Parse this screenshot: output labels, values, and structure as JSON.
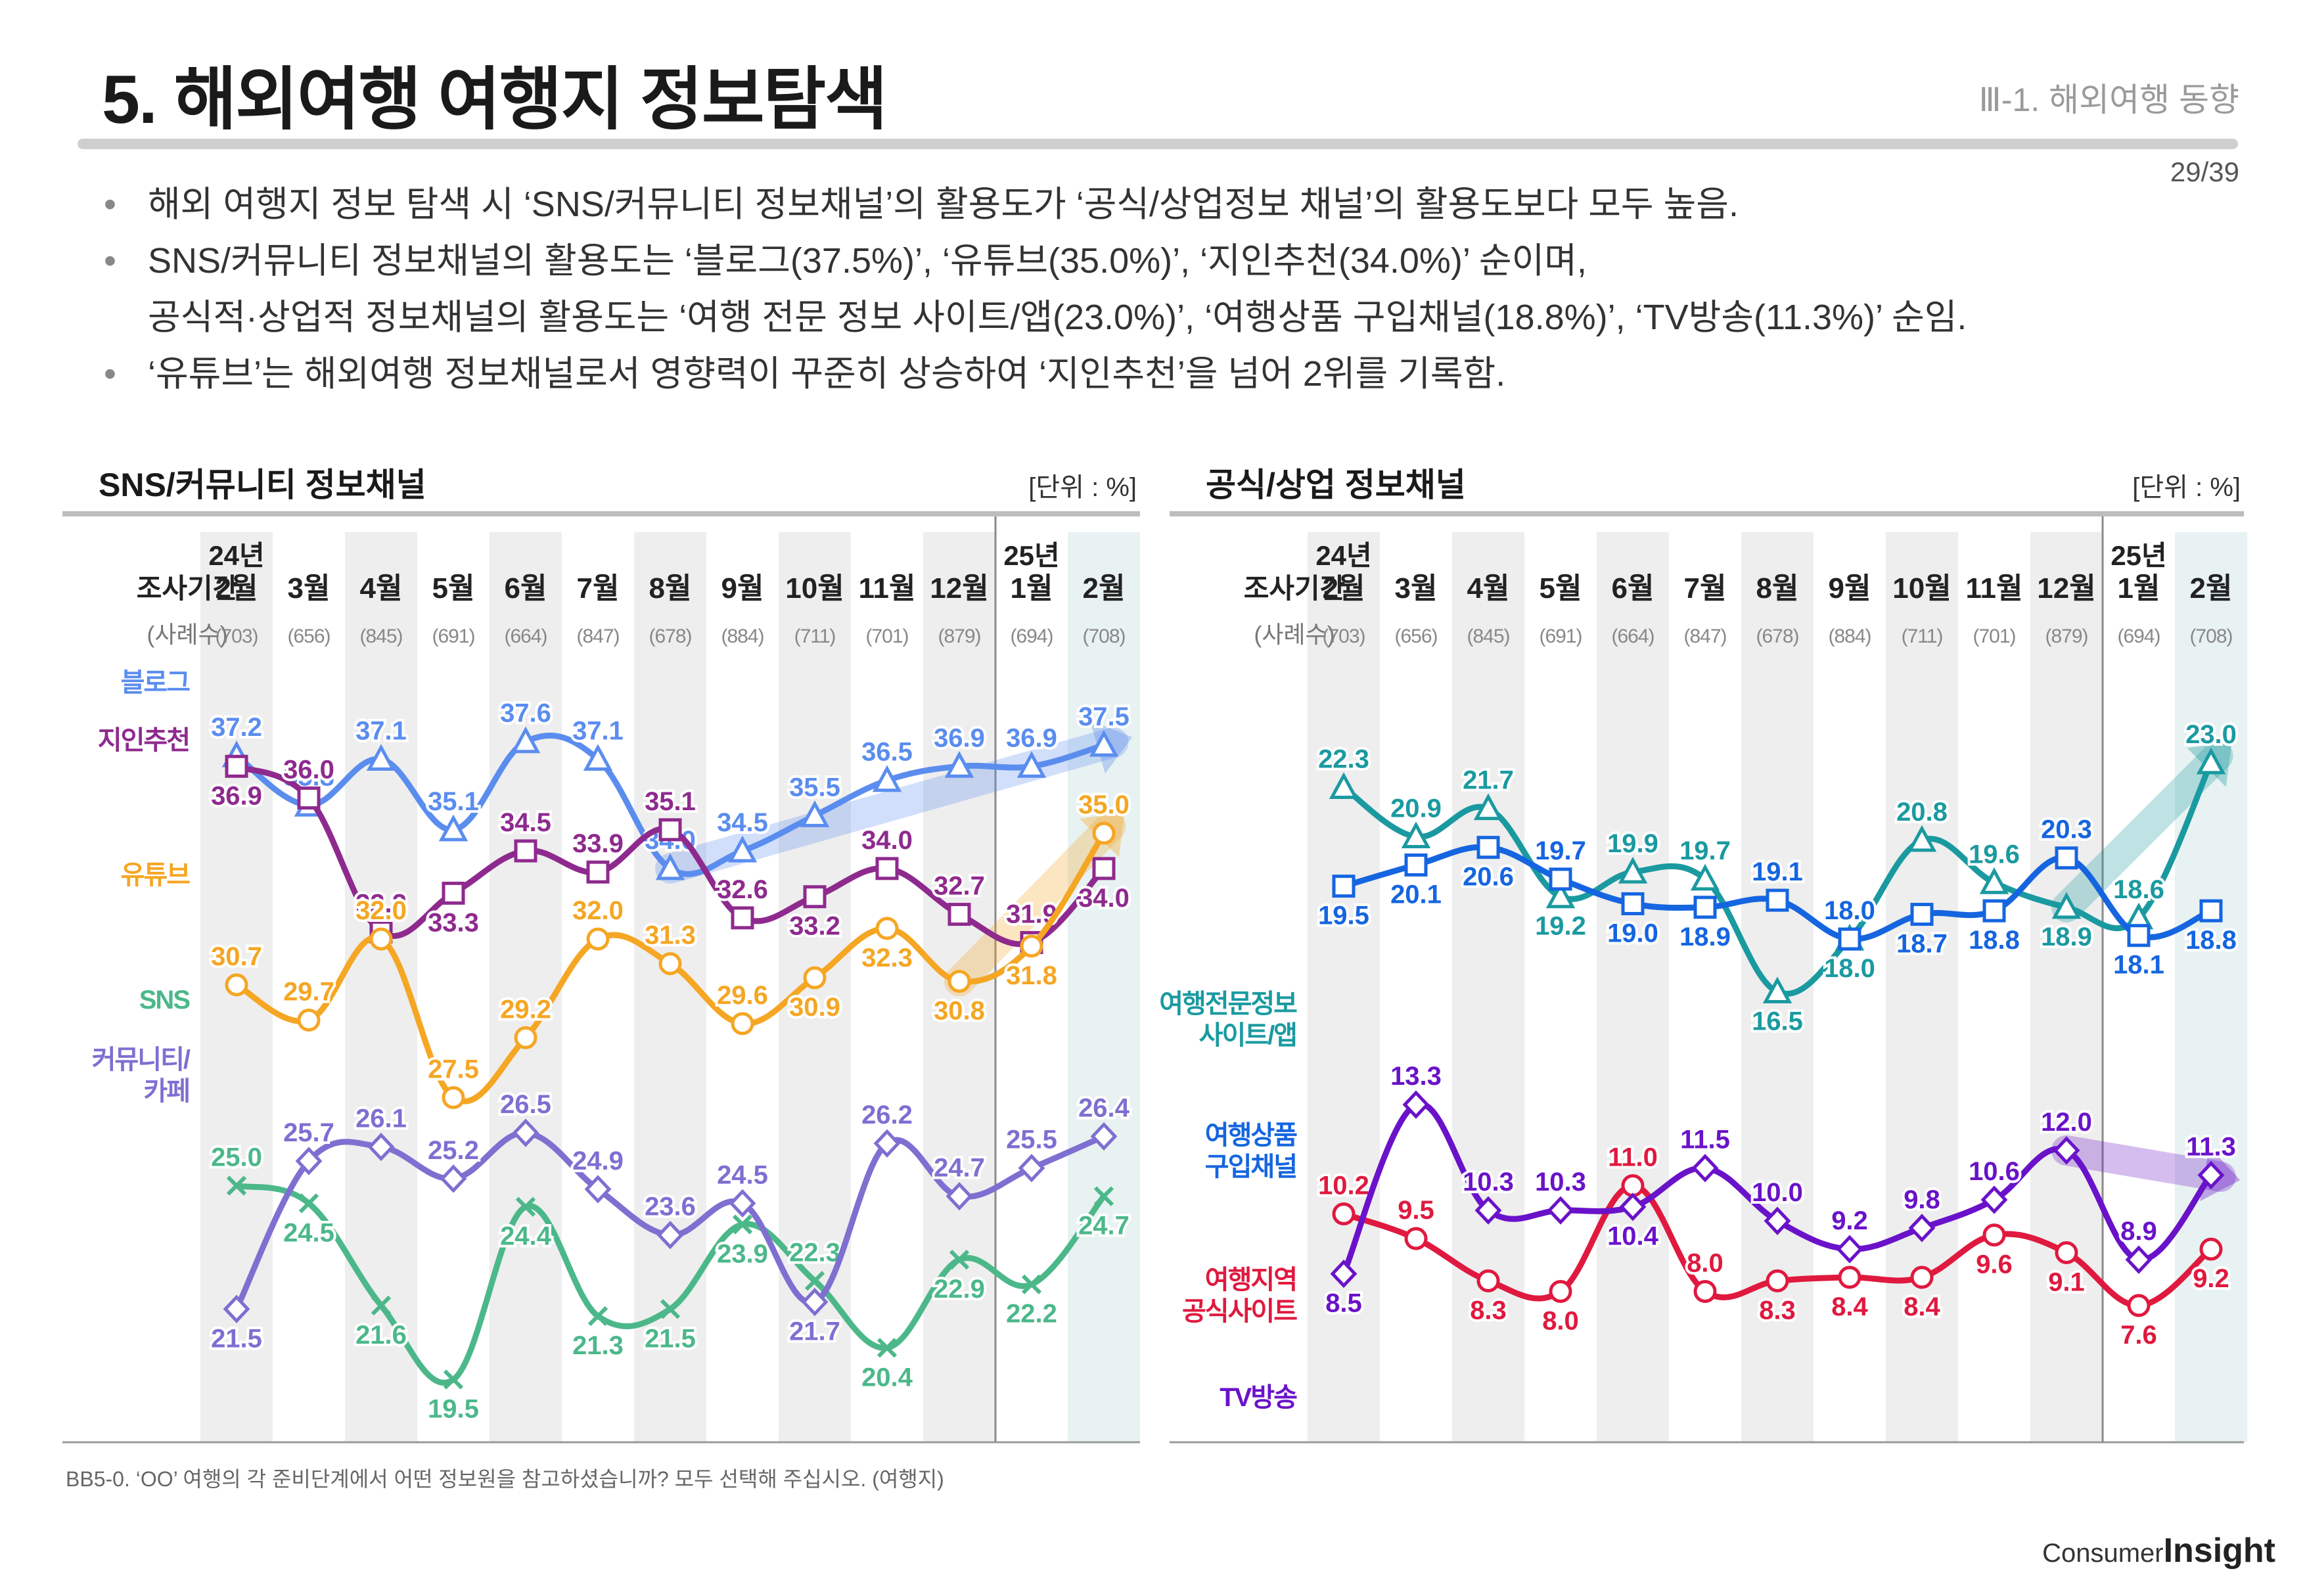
{
  "header": {
    "title": "5. 해외여행 여행지 정보탐색",
    "section": "Ⅲ-1. 해외여행 동향",
    "page": "29/39"
  },
  "bullets": [
    "해외 여행지 정보 탐색 시 ‘SNS/커뮤니티 정보채널’의 활용도가 ‘공식/상업정보 채널’의 활용도보다 모두 높음.",
    "SNS/커뮤니티 정보채널의 활용도는 ‘블로그(37.5%)’, ‘유튜브(35.0%)’, ‘지인추천(34.0%)’ 순이며,",
    "공식적·상업적 정보채널의 활용도는 ‘여행 전문 정보 사이트/앱(23.0%)’, ‘여행상품 구입채널(18.8%)’, ‘TV방송(11.3%)’ 순임.",
    "‘유튜브’는 해외여행 정보채널로서 영향력이 꾸준히 상승하여 ‘지인추천’을 넘어 2위를 기록함."
  ],
  "footnote": "BB5-0. ‘OO’ 여행의 각 준비단계에서 어떤 정보원을 참고하셨습니까? 모두 선택해 주십시오. (여행지)",
  "brand": {
    "small": "Consumer",
    "big": "Insight"
  },
  "chart_data": [
    {
      "type": "line",
      "title": "SNS/커뮤니티 정보채널",
      "unit_label": "[단위 : %]",
      "period_label": "조사기간",
      "n_label": "(사례수)",
      "year_labels": [
        "24년",
        "25년"
      ],
      "categories": [
        "2월",
        "3월",
        "4월",
        "5월",
        "6월",
        "7월",
        "8월",
        "9월",
        "10월",
        "11월",
        "12월",
        "1월",
        "2월"
      ],
      "n": [
        "(703)",
        "(656)",
        "(845)",
        "(691)",
        "(664)",
        "(847)",
        "(678)",
        "(884)",
        "(711)",
        "(701)",
        "(879)",
        "(694)",
        "(708)"
      ],
      "ylim": [
        18,
        40
      ],
      "series": [
        {
          "name": "블로그",
          "label": "블로그",
          "color": "#5b8def",
          "marker": "triangle",
          "values": [
            37.2,
            35.8,
            37.1,
            35.1,
            37.6,
            37.1,
            34.0,
            34.5,
            35.5,
            36.5,
            36.9,
            36.9,
            37.5
          ],
          "label_pos": [
            "a",
            "a",
            "a",
            "a",
            "a",
            "a",
            "a",
            "a",
            "a",
            "a",
            "a",
            "a",
            "a"
          ]
        },
        {
          "name": "지인추천",
          "label": "지인추천",
          "color": "#8e2a8e",
          "marker": "square",
          "values": [
            36.9,
            36.0,
            32.2,
            33.3,
            34.5,
            33.9,
            35.1,
            32.6,
            33.2,
            34.0,
            32.7,
            31.9,
            34.0
          ],
          "label_pos": [
            "b",
            "a",
            "a",
            "b",
            "a",
            "a",
            "a",
            "a",
            "b",
            "a",
            "a",
            "a",
            "b"
          ]
        },
        {
          "name": "유튜브",
          "label": "유튜브",
          "color": "#f5a623",
          "marker": "circle",
          "values": [
            30.7,
            29.7,
            32.0,
            27.5,
            29.2,
            32.0,
            31.3,
            29.6,
            30.9,
            32.3,
            30.8,
            31.8,
            35.0
          ],
          "label_pos": [
            "a",
            "a",
            "a",
            "a",
            "a",
            "a",
            "a",
            "a",
            "b",
            "b",
            "b",
            "b",
            "a"
          ]
        },
        {
          "name": "SNS",
          "label": "SNS",
          "color": "#4cb88a",
          "marker": "x",
          "values": [
            25.0,
            24.5,
            21.6,
            19.5,
            24.4,
            21.3,
            21.5,
            23.9,
            22.3,
            20.4,
            22.9,
            22.2,
            24.7
          ],
          "label_pos": [
            "a",
            "b",
            "b",
            "b",
            "b",
            "b",
            "b",
            "b",
            "a",
            "b",
            "b",
            "b",
            "b"
          ]
        },
        {
          "name": "커뮤니티/카페",
          "label": "커뮤니티/\n카페",
          "color": "#7e6fd1",
          "marker": "diamond",
          "values": [
            21.5,
            25.7,
            26.1,
            25.2,
            26.5,
            24.9,
            23.6,
            24.5,
            21.7,
            26.2,
            24.7,
            25.5,
            26.4
          ],
          "label_pos": [
            "b",
            "a",
            "a",
            "a",
            "a",
            "a",
            "a",
            "a",
            "b",
            "a",
            "a",
            "a",
            "a"
          ]
        }
      ]
    },
    {
      "type": "line",
      "title": "공식/상업 정보채널",
      "unit_label": "[단위 : %]",
      "period_label": "조사기간",
      "n_label": "(사례수)",
      "year_labels": [
        "24년",
        "25년"
      ],
      "categories": [
        "2월",
        "3월",
        "4월",
        "5월",
        "6월",
        "7월",
        "8월",
        "9월",
        "10월",
        "11월",
        "12월",
        "1월",
        "2월"
      ],
      "n": [
        "(703)",
        "(656)",
        "(845)",
        "(691)",
        "(664)",
        "(847)",
        "(678)",
        "(884)",
        "(711)",
        "(701)",
        "(879)",
        "(694)",
        "(708)"
      ],
      "ylim": [
        4,
        26
      ],
      "series": [
        {
          "name": "여행전문정보 사이트/앱",
          "label": "여행전문정보\n사이트/앱",
          "color": "#1a9aa0",
          "marker": "triangle",
          "values": [
            22.3,
            20.9,
            21.7,
            19.2,
            19.9,
            19.7,
            16.5,
            18.0,
            20.8,
            19.6,
            18.9,
            18.6,
            23.0
          ],
          "label_pos": [
            "a",
            "a",
            "a",
            "b",
            "a",
            "a",
            "b",
            "b",
            "a",
            "a",
            "b",
            "a",
            "a"
          ]
        },
        {
          "name": "여행상품 구입채널",
          "label": "여행상품\n구입채널",
          "color": "#1565e0",
          "marker": "square",
          "values": [
            19.5,
            20.1,
            20.6,
            19.7,
            19.0,
            18.9,
            19.1,
            18.0,
            18.7,
            18.8,
            20.3,
            18.1,
            18.8
          ],
          "label_pos": [
            "b",
            "b",
            "b",
            "a",
            "b",
            "b",
            "a",
            "a",
            "b",
            "b",
            "a",
            "b",
            "b"
          ]
        },
        {
          "name": "여행지역 공식사이트",
          "label": "여행지역\n공식사이트",
          "color": "#e0193f",
          "marker": "circle",
          "values": [
            10.2,
            9.5,
            8.3,
            8.0,
            11.0,
            8.0,
            8.3,
            8.4,
            8.4,
            9.6,
            9.1,
            7.6,
            9.2
          ],
          "label_pos": [
            "a",
            "a",
            "b",
            "b",
            "a",
            "a",
            "b",
            "b",
            "b",
            "b",
            "b",
            "b",
            "b"
          ]
        },
        {
          "name": "TV방송",
          "label": "TV방송",
          "color": "#6a12c9",
          "marker": "diamond",
          "values": [
            8.5,
            13.3,
            10.3,
            10.3,
            10.4,
            11.5,
            10.0,
            9.2,
            9.8,
            10.6,
            12.0,
            8.9,
            11.3
          ],
          "label_pos": [
            "b",
            "a",
            "a",
            "a",
            "b",
            "a",
            "a",
            "a",
            "a",
            "a",
            "a",
            "a",
            "a"
          ]
        }
      ]
    }
  ]
}
